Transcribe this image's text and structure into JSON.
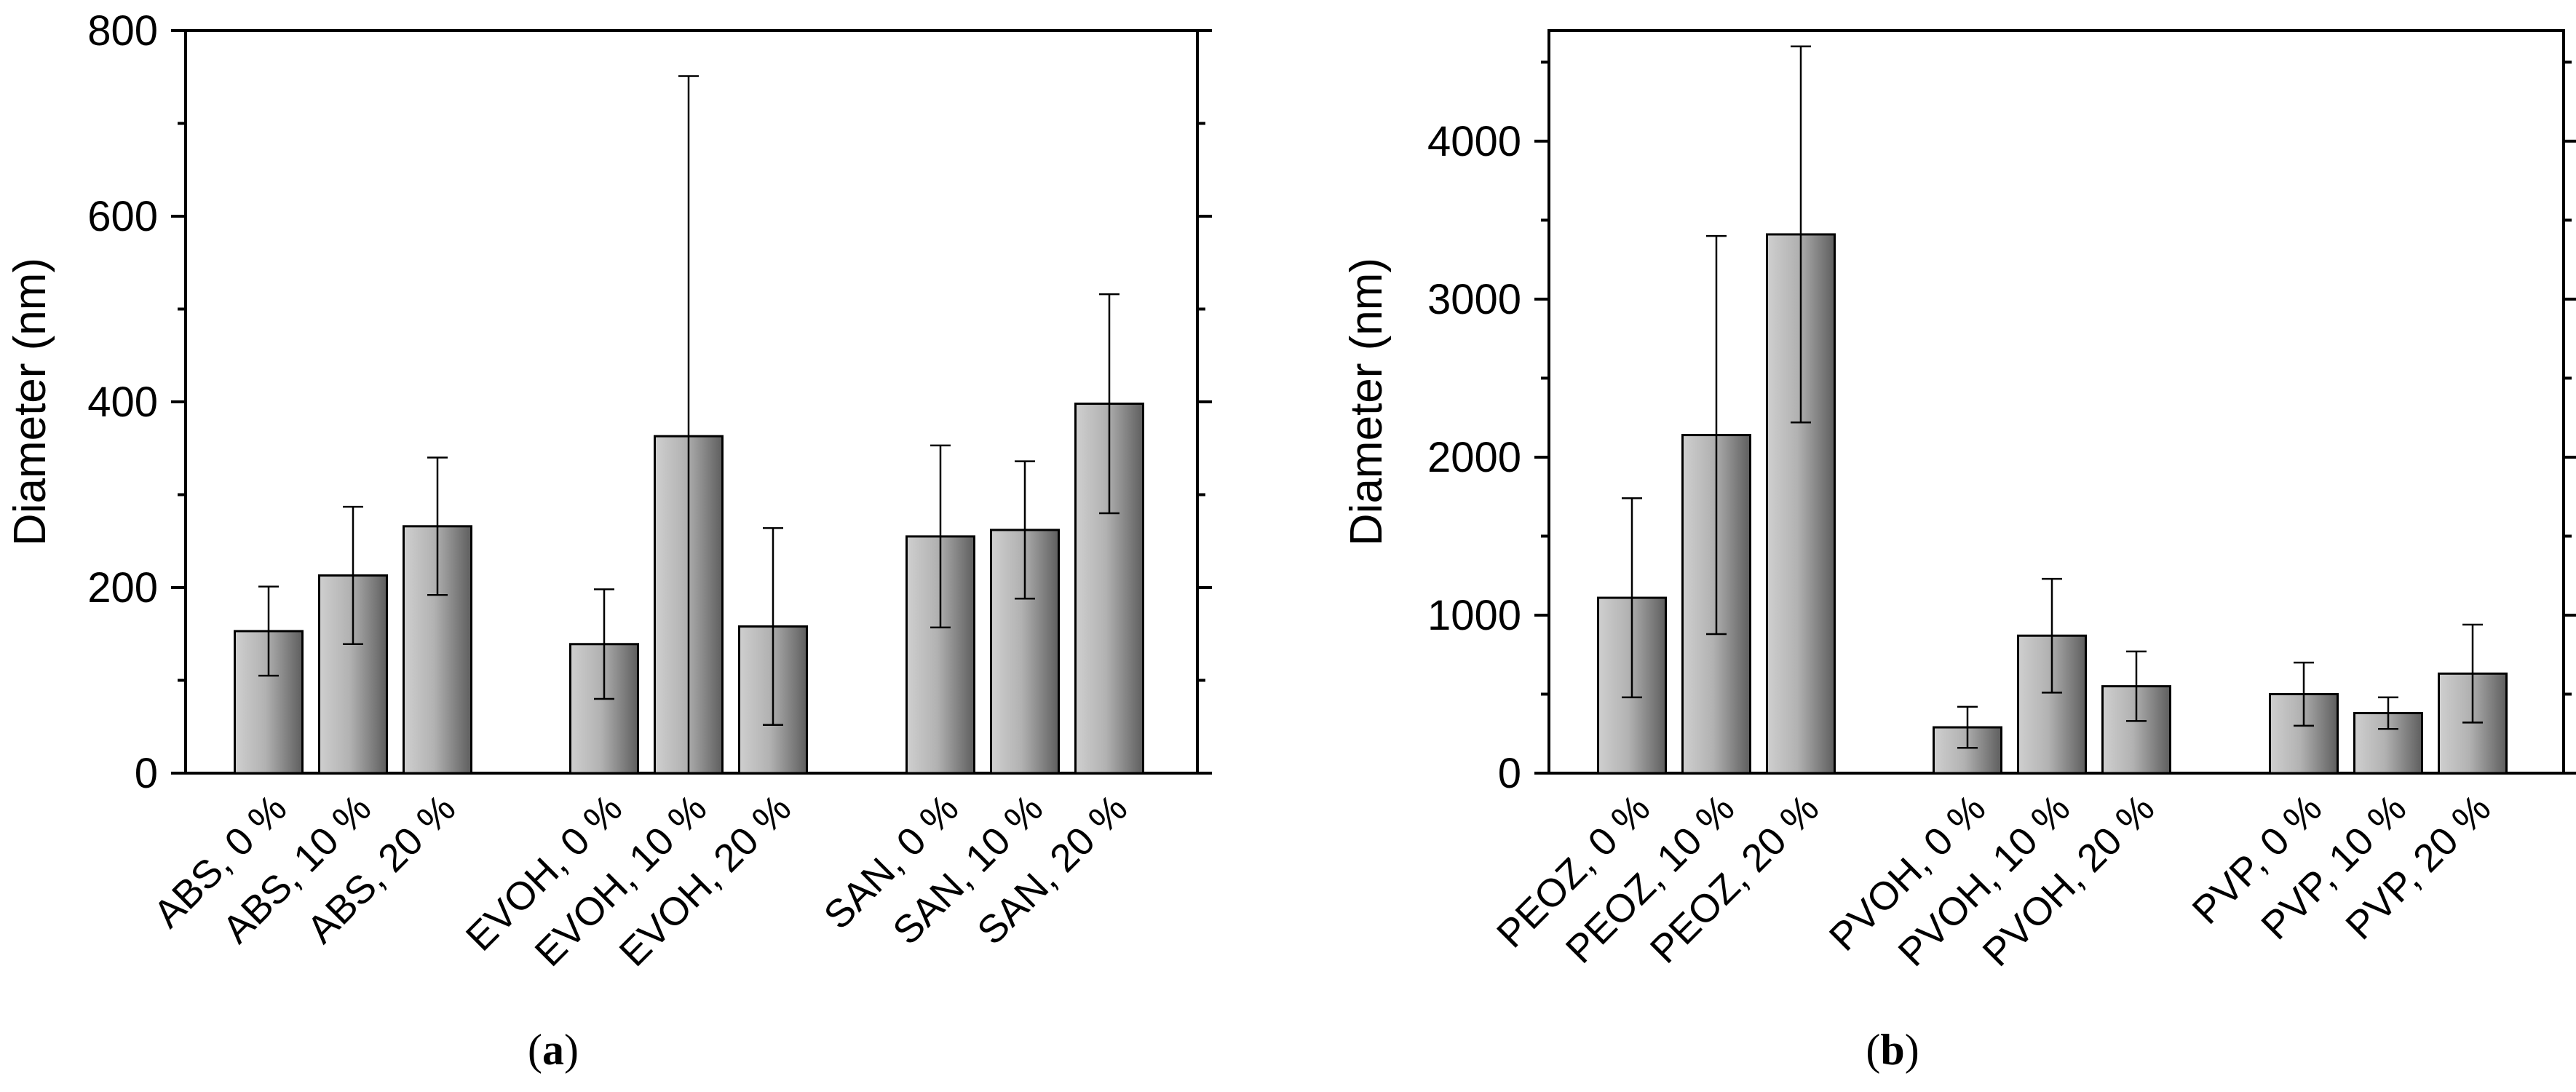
{
  "chart_data": [
    {
      "type": "bar",
      "panel_label": "a",
      "ylabel": "Diameter (nm)",
      "ylim": [
        0,
        800
      ],
      "yticks": [
        0,
        200,
        400,
        600,
        800
      ],
      "y_minor_ticks": [
        100,
        300,
        500,
        700
      ],
      "groups": [
        {
          "categories": [
            "ABS, 0 %",
            "ABS, 10 %",
            "ABS, 20 %"
          ],
          "values": [
            153,
            213,
            266
          ],
          "errors": [
            48,
            74,
            74
          ]
        },
        {
          "categories": [
            "EVOH, 0 %",
            "EVOH, 10 %",
            "EVOH, 20 %"
          ],
          "values": [
            139,
            363,
            158
          ],
          "errors": [
            59,
            388,
            106
          ]
        },
        {
          "categories": [
            "SAN, 0 %",
            "SAN, 10 %",
            "SAN, 20 %"
          ],
          "values": [
            255,
            262,
            398
          ],
          "errors": [
            98,
            74,
            118
          ]
        }
      ]
    },
    {
      "type": "bar",
      "panel_label": "b",
      "ylabel": "Diameter (nm)",
      "ylim": [
        0,
        4700
      ],
      "yticks": [
        0,
        1000,
        2000,
        3000,
        4000
      ],
      "y_minor_ticks": [
        500,
        1500,
        2500,
        3500,
        4500
      ],
      "groups": [
        {
          "categories": [
            "PEOZ, 0 %",
            "PEOZ, 10 %",
            "PEOZ, 20 %"
          ],
          "values": [
            1110,
            2140,
            3410
          ],
          "errors": [
            630,
            1260,
            1190
          ]
        },
        {
          "categories": [
            "PVOH, 0 %",
            "PVOH, 10 %",
            "PVOH, 20 %"
          ],
          "values": [
            290,
            870,
            550
          ],
          "errors": [
            130,
            360,
            220
          ]
        },
        {
          "categories": [
            "PVP, 0 %",
            "PVP, 10 %",
            "PVP, 20 %"
          ],
          "values": [
            500,
            380,
            630
          ],
          "errors": [
            200,
            100,
            310
          ]
        }
      ]
    }
  ]
}
